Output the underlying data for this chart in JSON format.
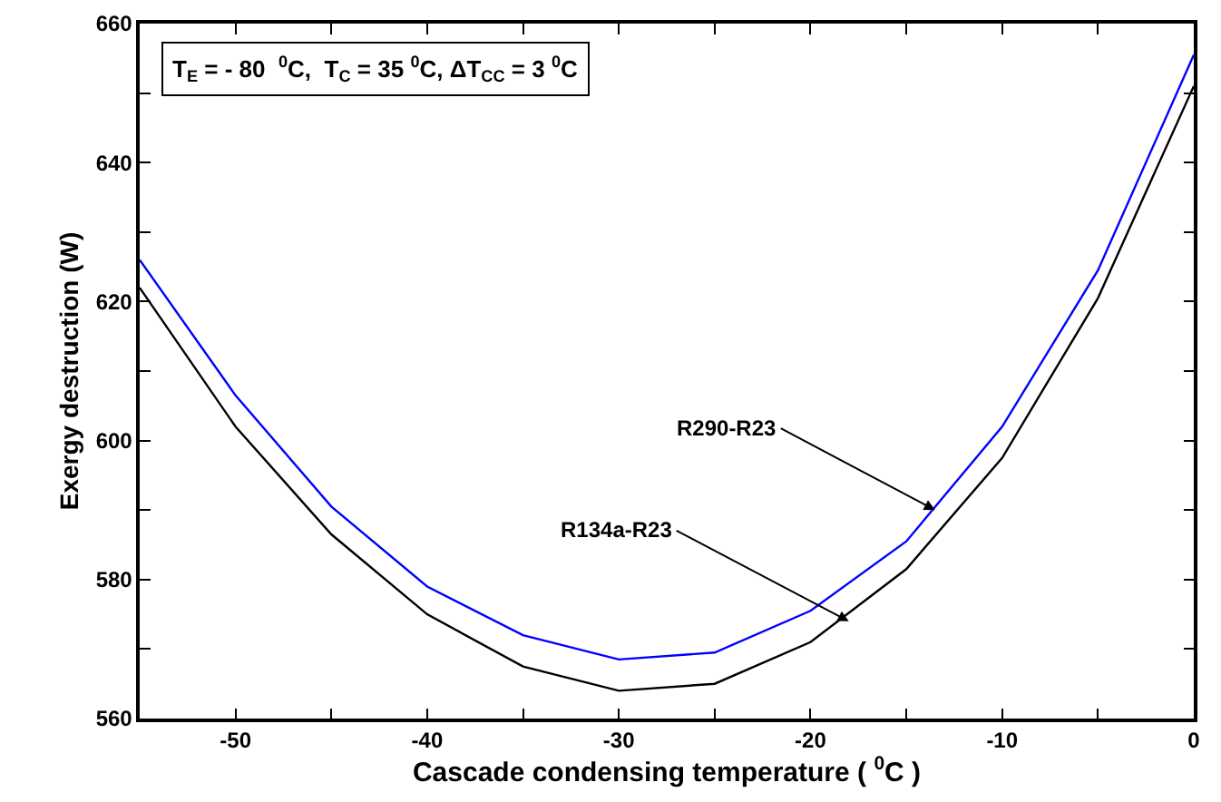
{
  "chart_data": {
    "type": "line",
    "xlabel": "Cascade condensing temperature ( $^{0}$C )",
    "ylabel": "Exergy destruction (W)",
    "x": [
      -55,
      -50,
      -45,
      -40,
      -35,
      -30,
      -25,
      -20,
      -15,
      -10,
      -5,
      0
    ],
    "series": [
      {
        "color": "#0000ff",
        "values": [
          626,
          606.5,
          590.5,
          579,
          572,
          568.5,
          569.5,
          575.5,
          585.5,
          602,
          624.5,
          655.5
        ]
      },
      {
        "color": "#000000",
        "values": [
          622,
          602,
          586.5,
          575,
          567.5,
          564,
          565,
          571,
          581.5,
          597.5,
          620.5,
          651
        ]
      }
    ],
    "xlim": [
      -55,
      0
    ],
    "xticks": [
      {
        "value": -55,
        "label": null
      },
      -50,
      {
        "value": -45,
        "label": null
      },
      -40,
      {
        "value": -35,
        "label": null
      },
      -30,
      {
        "value": -25,
        "label": null
      },
      -20,
      {
        "value": -15,
        "label": null
      },
      -10,
      {
        "value": -5,
        "label": null
      },
      0
    ],
    "ylim": [
      560,
      660
    ],
    "yticks": [
      560,
      {
        "value": 570,
        "label": null
      },
      580,
      {
        "value": 590,
        "label": null
      },
      600,
      {
        "value": 610,
        "label": null
      },
      620,
      {
        "value": 630,
        "label": null
      },
      640,
      {
        "value": 650,
        "label": null
      },
      660
    ],
    "annotations": [
      "T$_{E}$ = - 80  $^{0}$C,  T$_{C}$ = 35 $^{0}$C, ΔT$_{CC}$ = 3 $^{0}$C",
      {
        "text": "R290-R23",
        "x": -13.5,
        "y": 590
      },
      {
        "text": "R134a-R23",
        "x": -18,
        "y": 574
      }
    ],
    "grid": false,
    "marker": "none",
    "line_style": "solid"
  }
}
